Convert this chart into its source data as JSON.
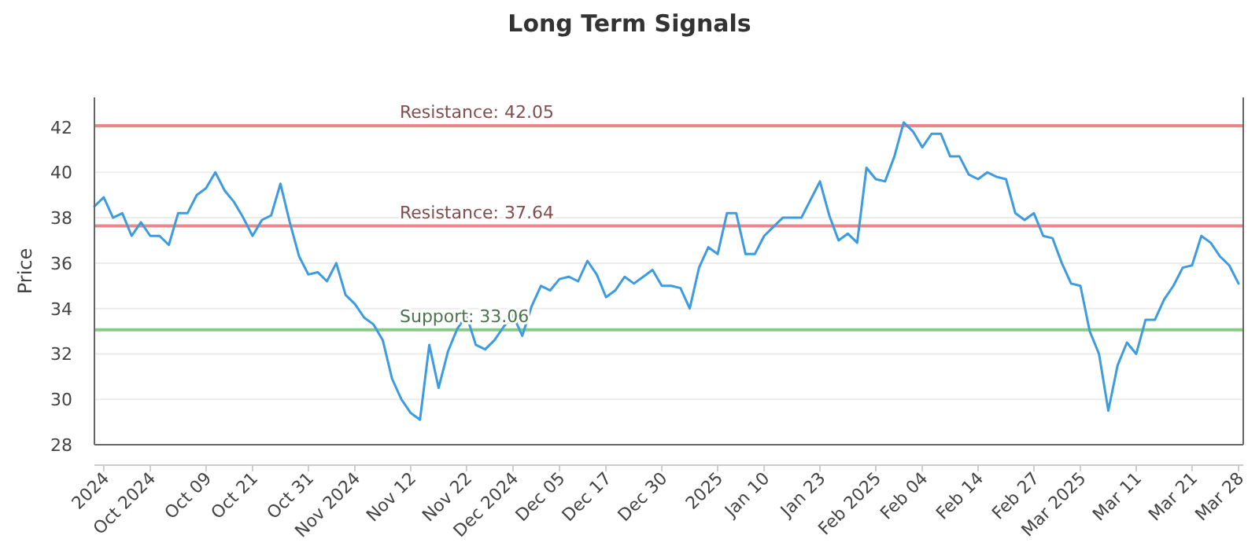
{
  "chart_data": {
    "type": "line",
    "title": "Long Term Signals",
    "ylabel": "Price",
    "ylim": [
      28,
      43.3
    ],
    "yticks": [
      28,
      30,
      32,
      34,
      36,
      38,
      40,
      42
    ],
    "categories": [
      null,
      "2024",
      null,
      null,
      null,
      null,
      "Oct 2024",
      null,
      null,
      null,
      null,
      null,
      "Oct 09",
      null,
      null,
      null,
      null,
      "Oct 21",
      null,
      null,
      null,
      null,
      null,
      "Oct 31",
      null,
      null,
      null,
      null,
      "Nov 2024",
      null,
      null,
      null,
      null,
      null,
      "Nov 12",
      null,
      null,
      null,
      null,
      null,
      "Nov 22",
      null,
      null,
      null,
      null,
      "Dec 2024",
      null,
      null,
      null,
      null,
      "Dec 05",
      null,
      null,
      null,
      null,
      "Dec 17",
      null,
      null,
      null,
      null,
      null,
      "Dec 30",
      null,
      null,
      null,
      null,
      null,
      "2025",
      null,
      null,
      null,
      null,
      "Jan 10",
      null,
      null,
      null,
      null,
      null,
      "Jan 23",
      null,
      null,
      null,
      null,
      null,
      "Feb 2025",
      null,
      null,
      null,
      null,
      "Feb 04",
      null,
      null,
      null,
      null,
      null,
      "Feb 14",
      null,
      null,
      null,
      null,
      null,
      "Feb 27",
      null,
      null,
      null,
      null,
      "Mar 2025",
      null,
      null,
      null,
      null,
      null,
      "Mar 11",
      null,
      null,
      null,
      null,
      null,
      "Mar 21",
      null,
      null,
      null,
      null,
      "Mar 28"
    ],
    "grid": "y",
    "marker": "none",
    "line_style": "solid",
    "series": [
      {
        "color": "#3d9be0",
        "values": [
          38.5,
          38.9,
          38,
          38.2,
          37.2,
          37.8,
          37.2,
          37.2,
          36.8,
          38.2,
          38.2,
          39,
          39.3,
          40,
          39.2,
          38.7,
          38,
          37.2,
          37.9,
          38.1,
          39.5,
          37.8,
          36.3,
          35.5,
          35.6,
          35.2,
          36,
          34.6,
          34.2,
          33.6,
          33.3,
          32.6,
          30.9,
          30,
          29.4,
          29.1,
          32.4,
          30.5,
          32.1,
          33.1,
          33.7,
          32.4,
          32.2,
          32.6,
          33.2,
          33.7,
          32.8,
          34.1,
          35,
          34.8,
          35.3,
          35.4,
          35.2,
          36.1,
          35.5,
          34.5,
          34.8,
          35.4,
          35.1,
          35.4,
          35.7,
          35,
          35,
          34.9,
          34,
          35.8,
          36.7,
          36.4,
          38.2,
          38.2,
          36.4,
          36.4,
          37.2,
          37.6,
          38,
          38,
          38,
          38.8,
          39.6,
          38.1,
          37,
          37.3,
          36.9,
          40.2,
          39.7,
          39.6,
          40.7,
          42.2,
          41.8,
          41.1,
          41.7,
          41.7,
          40.7,
          40.7,
          39.9,
          39.7,
          40,
          39.8,
          39.7,
          38.2,
          37.9,
          38.2,
          37.2,
          37.1,
          36,
          35.1,
          35,
          33,
          32,
          29.5,
          31.5,
          32.5,
          32,
          33.5,
          33.5,
          34.4,
          35,
          35.8,
          35.9,
          37.2,
          36.9,
          36.3,
          35.9,
          35.1
        ]
      }
    ],
    "ref_lines": [
      {
        "axis": "y",
        "value": 42.05,
        "label": "Resistance: 42.05",
        "color": "#e8888a"
      },
      {
        "axis": "y",
        "value": 37.64,
        "label": "Resistance: 37.64",
        "color": "#e8888a"
      },
      {
        "axis": "y",
        "value": 33.06,
        "label": "Support: 33.06",
        "color": "#86cc86"
      }
    ]
  }
}
